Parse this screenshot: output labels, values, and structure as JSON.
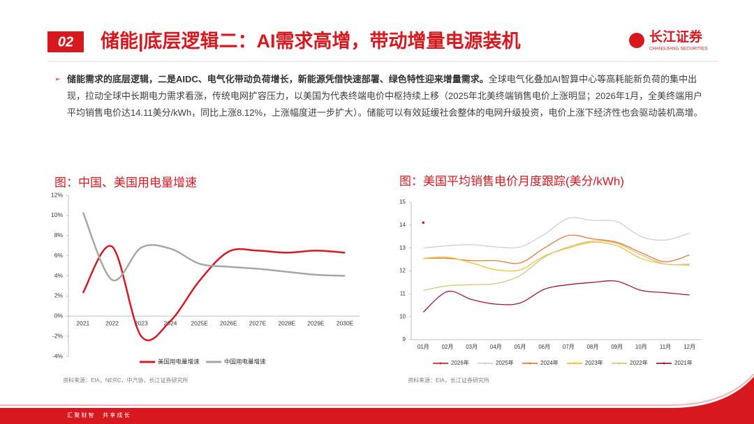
{
  "header": {
    "number": "02",
    "title": "储能|底层逻辑二：AI需求高增，带动增量电源装机",
    "logo": "长江证券",
    "logo_en": "CHANGJIANG SECURITIES"
  },
  "bullet": {
    "bold": "储能需求的底层逻辑，二是AIDC、电气化带动负荷增长，新能源凭借快速部署、绿色特性迎来增量需求。",
    "text": "全球电气化叠加AI智算中心等高耗能新负荷的集中出现，拉动全球中长期电力需求看涨，传统电网扩容压力，以美国为代表终端电价中枢持续上移（2025年北美终端销售电价上涨明显；2026年1月，全美终端用户平均销售电价达14.11美分/kWh，同比上涨8.12%，上涨幅度进一步扩大）。储能可以有效延缓社会整体的电网升级投资，电价上涨下经济性也会驱动装机高增。"
  },
  "footer": "汇 聚 财 智 　 共 享 成 长",
  "chart_data": [
    {
      "type": "line",
      "title": "图：中国、美国用电量增速",
      "source": "资料来源：EIA，NERC，中汽协，长江证券研究所",
      "categories": [
        "2021",
        "2022",
        "2023",
        "2024",
        "2025E",
        "2026E",
        "2027E",
        "2028E",
        "2029E",
        "2030E"
      ],
      "ylim": [
        -4,
        12
      ],
      "yticks": [
        {
          "value": -4,
          "label": "-4%"
        },
        {
          "value": -2,
          "label": "-2%"
        },
        {
          "value": 0,
          "label": "0%"
        },
        {
          "value": 2,
          "label": "2%"
        },
        {
          "value": 4,
          "label": "4%"
        },
        {
          "value": 6,
          "label": "6%"
        },
        {
          "value": 8,
          "label": "8%"
        },
        {
          "value": 10,
          "label": "10%"
        },
        {
          "value": 12,
          "label": "12%"
        }
      ],
      "grid": false,
      "series": [
        {
          "name": "美国用电量增速",
          "color": "#d7191f",
          "values": [
            2.3,
            6.9,
            -2.0,
            -0.5,
            3.5,
            6.4,
            6.5,
            6.3,
            6.5,
            6.3
          ]
        },
        {
          "name": "中国用电量增速",
          "color": "#a6a6a6",
          "values": [
            10.3,
            3.6,
            6.8,
            6.7,
            5.2,
            4.9,
            4.7,
            4.4,
            4.1,
            4.0
          ]
        }
      ]
    },
    {
      "type": "line",
      "title": "图：美国平均销售电价月度跟踪(美分/kWh)",
      "source": "资料来源：EIA，长江证券研究所",
      "categories": [
        "01月",
        "02月",
        "03月",
        "04月",
        "05月",
        "06月",
        "07月",
        "08月",
        "09月",
        "10月",
        "11月",
        "12月"
      ],
      "ylim": [
        9,
        15
      ],
      "yticks": [
        9,
        10,
        11,
        12,
        13,
        14,
        15
      ],
      "grid": false,
      "series": [
        {
          "name": "2026年",
          "color": "#c8282d",
          "values": [
            14.11,
            null,
            null,
            null,
            null,
            null,
            null,
            null,
            null,
            null,
            null,
            null
          ]
        },
        {
          "name": "2025年",
          "color": "#cfcfcf",
          "values": [
            13.0,
            13.1,
            13.15,
            13.05,
            13.05,
            13.6,
            14.3,
            14.2,
            14.15,
            13.5,
            13.35,
            13.65
          ]
        },
        {
          "name": "2024年",
          "color": "#e8793a",
          "values": [
            12.55,
            12.55,
            12.45,
            12.45,
            12.35,
            13.0,
            13.55,
            13.4,
            13.25,
            12.8,
            12.4,
            12.7
          ]
        },
        {
          "name": "2023年",
          "color": "#f2c12e",
          "values": [
            12.55,
            12.6,
            12.35,
            12.05,
            12.05,
            12.65,
            13.0,
            13.25,
            13.1,
            12.55,
            12.3,
            12.25
          ]
        },
        {
          "name": "2022年",
          "color": "#d9c47a",
          "values": [
            11.15,
            11.35,
            11.4,
            11.45,
            11.8,
            12.6,
            13.05,
            13.3,
            13.2,
            12.7,
            12.3,
            12.3
          ]
        },
        {
          "name": "2021年",
          "color": "#a3182b",
          "values": [
            10.2,
            11.1,
            10.75,
            10.55,
            10.6,
            11.2,
            11.4,
            11.5,
            11.55,
            11.15,
            11.05,
            10.95
          ]
        }
      ]
    }
  ]
}
